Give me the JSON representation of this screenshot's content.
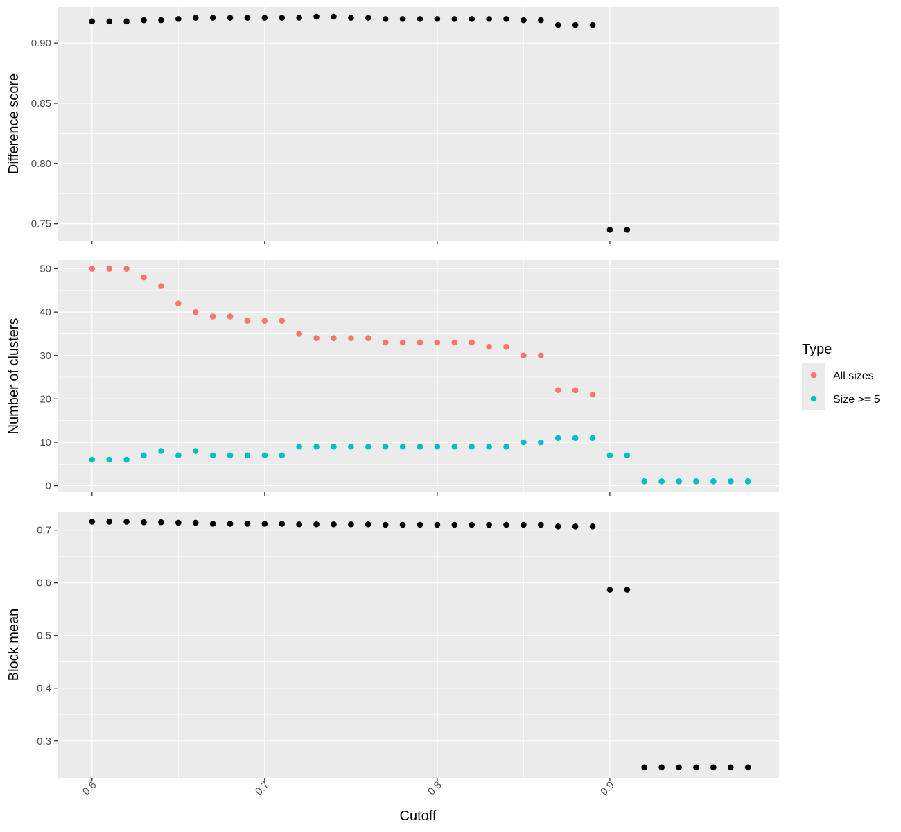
{
  "chart_data": {
    "type": "scatter",
    "xlabel": "Cutoff",
    "x_ticks": [
      0.6,
      0.7,
      0.8,
      0.9
    ],
    "x_tick_labels": [
      "0.6",
      "0.7",
      "0.8",
      "0.9"
    ],
    "xlim": [
      0.58,
      0.998
    ],
    "grid": true,
    "legend": {
      "title": "Type",
      "placement": "right",
      "entries": [
        {
          "label": "All sizes",
          "color": "#F8766D"
        },
        {
          "label": "Size >= 5",
          "color": "#00BFC4"
        }
      ]
    },
    "panels": [
      {
        "id": "difference-score",
        "ylabel": "Difference score",
        "ylim": [
          0.736,
          0.93
        ],
        "y_ticks": [
          0.75,
          0.8,
          0.85,
          0.9
        ],
        "y_tick_labels": [
          "0.75",
          "0.80",
          "0.85",
          "0.90"
        ],
        "series": [
          {
            "color": "#000000",
            "x": [
              0.6,
              0.61,
              0.62,
              0.63,
              0.64,
              0.65,
              0.66,
              0.67,
              0.68,
              0.69,
              0.7,
              0.71,
              0.72,
              0.73,
              0.74,
              0.75,
              0.76,
              0.77,
              0.78,
              0.79,
              0.8,
              0.81,
              0.82,
              0.83,
              0.84,
              0.85,
              0.86,
              0.87,
              0.88,
              0.89,
              0.9,
              0.91
            ],
            "y": [
              0.918,
              0.918,
              0.918,
              0.919,
              0.919,
              0.92,
              0.921,
              0.921,
              0.921,
              0.921,
              0.921,
              0.921,
              0.921,
              0.922,
              0.922,
              0.921,
              0.921,
              0.92,
              0.92,
              0.92,
              0.92,
              0.92,
              0.92,
              0.92,
              0.92,
              0.919,
              0.919,
              0.915,
              0.915,
              0.915,
              0.745,
              0.745
            ]
          }
        ]
      },
      {
        "id": "number-of-clusters",
        "ylabel": "Number of clusters",
        "ylim": [
          -1.5,
          52
        ],
        "y_ticks": [
          0,
          10,
          20,
          30,
          40,
          50
        ],
        "y_tick_labels": [
          "0",
          "10",
          "20",
          "30",
          "40",
          "50"
        ],
        "series": [
          {
            "name": "All sizes",
            "color": "#F8766D",
            "x": [
              0.6,
              0.61,
              0.62,
              0.63,
              0.64,
              0.65,
              0.66,
              0.67,
              0.68,
              0.69,
              0.7,
              0.71,
              0.72,
              0.73,
              0.74,
              0.75,
              0.76,
              0.77,
              0.78,
              0.79,
              0.8,
              0.81,
              0.82,
              0.83,
              0.84,
              0.85,
              0.86,
              0.87,
              0.88,
              0.89
            ],
            "y": [
              50,
              50,
              50,
              48,
              46,
              42,
              40,
              39,
              39,
              38,
              38,
              38,
              35,
              34,
              34,
              34,
              34,
              33,
              33,
              33,
              33,
              33,
              33,
              32,
              32,
              30,
              30,
              22,
              22,
              21
            ]
          },
          {
            "name": "Size >= 5",
            "color": "#00BFC4",
            "x": [
              0.6,
              0.61,
              0.62,
              0.63,
              0.64,
              0.65,
              0.66,
              0.67,
              0.68,
              0.69,
              0.7,
              0.71,
              0.72,
              0.73,
              0.74,
              0.75,
              0.76,
              0.77,
              0.78,
              0.79,
              0.8,
              0.81,
              0.82,
              0.83,
              0.84,
              0.85,
              0.86,
              0.87,
              0.88,
              0.89,
              0.9,
              0.91,
              0.92,
              0.93,
              0.94,
              0.95,
              0.96,
              0.97,
              0.98
            ],
            "y": [
              6,
              6,
              6,
              7,
              8,
              7,
              8,
              7,
              7,
              7,
              7,
              7,
              9,
              9,
              9,
              9,
              9,
              9,
              9,
              9,
              9,
              9,
              9,
              9,
              9,
              10,
              10,
              11,
              11,
              11,
              7,
              7,
              1,
              1,
              1,
              1,
              1,
              1,
              1
            ]
          }
        ]
      },
      {
        "id": "block-mean",
        "ylabel": "Block mean",
        "ylim": [
          0.23,
          0.735
        ],
        "y_ticks": [
          0.3,
          0.4,
          0.5,
          0.6,
          0.7
        ],
        "y_tick_labels": [
          "0.3",
          "0.4",
          "0.5",
          "0.6",
          "0.7"
        ],
        "series": [
          {
            "color": "#000000",
            "x": [
              0.6,
              0.61,
              0.62,
              0.63,
              0.64,
              0.65,
              0.66,
              0.67,
              0.68,
              0.69,
              0.7,
              0.71,
              0.72,
              0.73,
              0.74,
              0.75,
              0.76,
              0.77,
              0.78,
              0.79,
              0.8,
              0.81,
              0.82,
              0.83,
              0.84,
              0.85,
              0.86,
              0.87,
              0.88,
              0.89,
              0.9,
              0.91,
              0.92,
              0.93,
              0.94,
              0.95,
              0.96,
              0.97,
              0.98
            ],
            "y": [
              0.716,
              0.716,
              0.716,
              0.715,
              0.715,
              0.714,
              0.714,
              0.712,
              0.712,
              0.712,
              0.712,
              0.712,
              0.711,
              0.711,
              0.711,
              0.711,
              0.711,
              0.71,
              0.71,
              0.71,
              0.71,
              0.71,
              0.71,
              0.71,
              0.71,
              0.71,
              0.71,
              0.707,
              0.707,
              0.707,
              0.587,
              0.587,
              0.25,
              0.25,
              0.25,
              0.25,
              0.25,
              0.25,
              0.25
            ]
          }
        ]
      }
    ]
  }
}
